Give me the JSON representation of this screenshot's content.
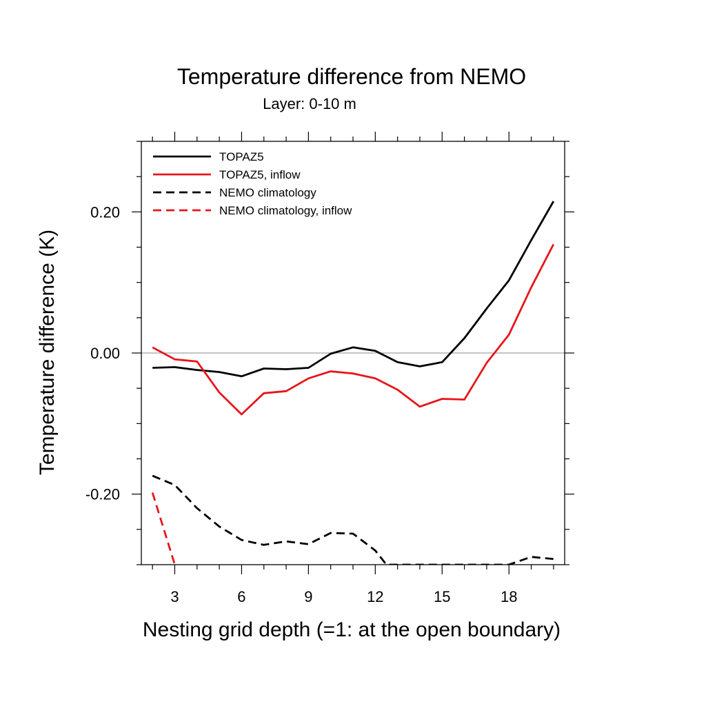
{
  "chart_data": {
    "type": "line",
    "title": "Temperature difference from NEMO",
    "subtitle": "Layer: 0-10 m",
    "xlabel": "Nesting grid depth (=1: at the open boundary)",
    "ylabel": "Temperature difference (K)",
    "xlim": [
      1.5,
      20.5
    ],
    "ylim": [
      -0.3,
      0.3
    ],
    "x_ticks": [
      3,
      6,
      9,
      12,
      15,
      18
    ],
    "x_tick_labels": [
      "3",
      "6",
      "9",
      "12",
      "15",
      "18"
    ],
    "y_ticks": [
      -0.2,
      0.0,
      0.2
    ],
    "y_tick_labels": [
      "-0.20",
      "0.00",
      "0.20"
    ],
    "zero_line": true,
    "grid": false,
    "legend_position": "top-left",
    "series": [
      {
        "name": "TOPAZ5",
        "color": "#000000",
        "dash": "solid",
        "x": [
          2,
          3,
          4,
          5,
          6,
          7,
          8,
          9,
          10,
          11,
          12,
          13,
          14,
          15,
          16,
          17,
          18,
          19,
          20
        ],
        "values": [
          -0.021,
          -0.02,
          -0.024,
          -0.027,
          -0.033,
          -0.022,
          -0.023,
          -0.021,
          -0.001,
          0.008,
          0.003,
          -0.013,
          -0.019,
          -0.013,
          0.021,
          0.063,
          0.103,
          0.16,
          0.215
        ]
      },
      {
        "name": "TOPAZ5, inflow",
        "color": "#e8141a",
        "dash": "solid",
        "x": [
          2,
          3,
          4,
          5,
          6,
          7,
          8,
          9,
          10,
          11,
          12,
          13,
          14,
          15,
          16,
          17,
          18,
          19,
          20
        ],
        "values": [
          0.008,
          -0.009,
          -0.012,
          -0.056,
          -0.087,
          -0.057,
          -0.054,
          -0.036,
          -0.026,
          -0.029,
          -0.036,
          -0.052,
          -0.076,
          -0.065,
          -0.066,
          -0.014,
          0.026,
          0.093,
          0.154
        ]
      },
      {
        "name": "NEMO climatology",
        "color": "#000000",
        "dash": "dashed",
        "x": [
          2,
          3,
          4,
          5,
          6,
          7,
          8,
          9,
          10,
          11,
          12,
          12.5,
          18,
          19,
          20
        ],
        "values": [
          -0.174,
          -0.187,
          -0.22,
          -0.246,
          -0.265,
          -0.272,
          -0.267,
          -0.271,
          -0.255,
          -0.256,
          -0.28,
          -0.3,
          -0.3,
          -0.289,
          -0.292
        ]
      },
      {
        "name": "NEMO climatology, inflow",
        "color": "#e8141a",
        "dash": "dashed",
        "x": [
          2,
          3
        ],
        "values": [
          -0.198,
          -0.3
        ]
      }
    ]
  }
}
